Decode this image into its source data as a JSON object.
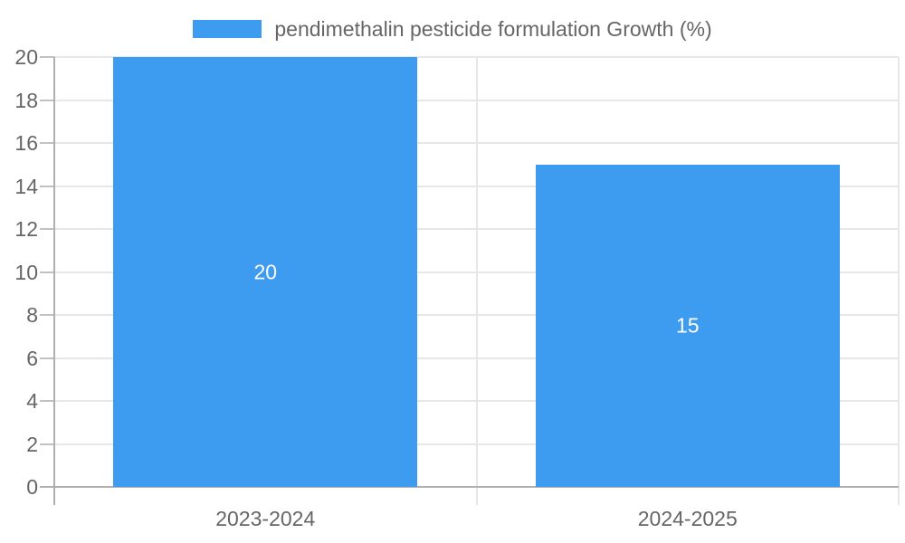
{
  "chart_data": {
    "type": "bar",
    "series_name": "pendimethalin pesticide formulation Growth (%)",
    "categories": [
      "2023-2024",
      "2024-2025"
    ],
    "values": [
      20,
      15
    ],
    "title": "",
    "xlabel": "",
    "ylabel": "",
    "ylim": [
      0,
      20
    ],
    "ytick_step": 2,
    "ytick_labels": [
      "0",
      "2",
      "4",
      "6",
      "8",
      "10",
      "12",
      "14",
      "16",
      "18",
      "20"
    ],
    "data_labels": [
      "20",
      "15"
    ],
    "grid": true,
    "legend_position": "top-center",
    "colors": {
      "bar": "#3d9bf0",
      "grid": "#e7e7e7",
      "axis": "#b0b0b0",
      "tick": "#c2c2c2",
      "tick_label": "#666666",
      "data_label": "#ffffff"
    }
  }
}
